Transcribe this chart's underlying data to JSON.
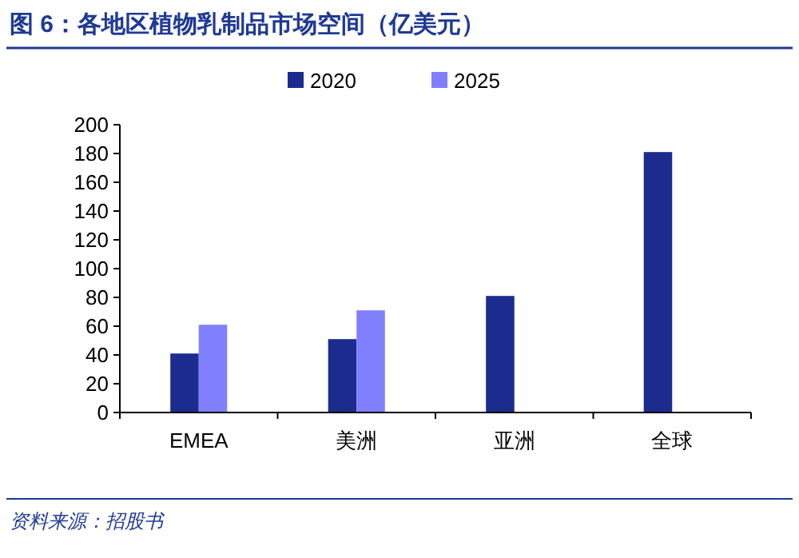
{
  "chart_data": {
    "type": "bar",
    "title": "图 6：各地区植物乳制品市场空间（亿美元）",
    "categories": [
      "EMEA",
      "美洲",
      "亚洲",
      "全球"
    ],
    "series": [
      {
        "name": "2020",
        "color": "#1c2b8e",
        "values": [
          41,
          51,
          81,
          181
        ]
      },
      {
        "name": "2025",
        "color": "#8080ff",
        "values": [
          61,
          71,
          null,
          null
        ]
      }
    ],
    "ylim": [
      0,
      200
    ],
    "yticks": [
      0,
      20,
      40,
      60,
      80,
      100,
      120,
      140,
      160,
      180,
      200
    ],
    "grid": false,
    "legend": "top",
    "annotations": [
      "资料来源：招股书"
    ]
  }
}
